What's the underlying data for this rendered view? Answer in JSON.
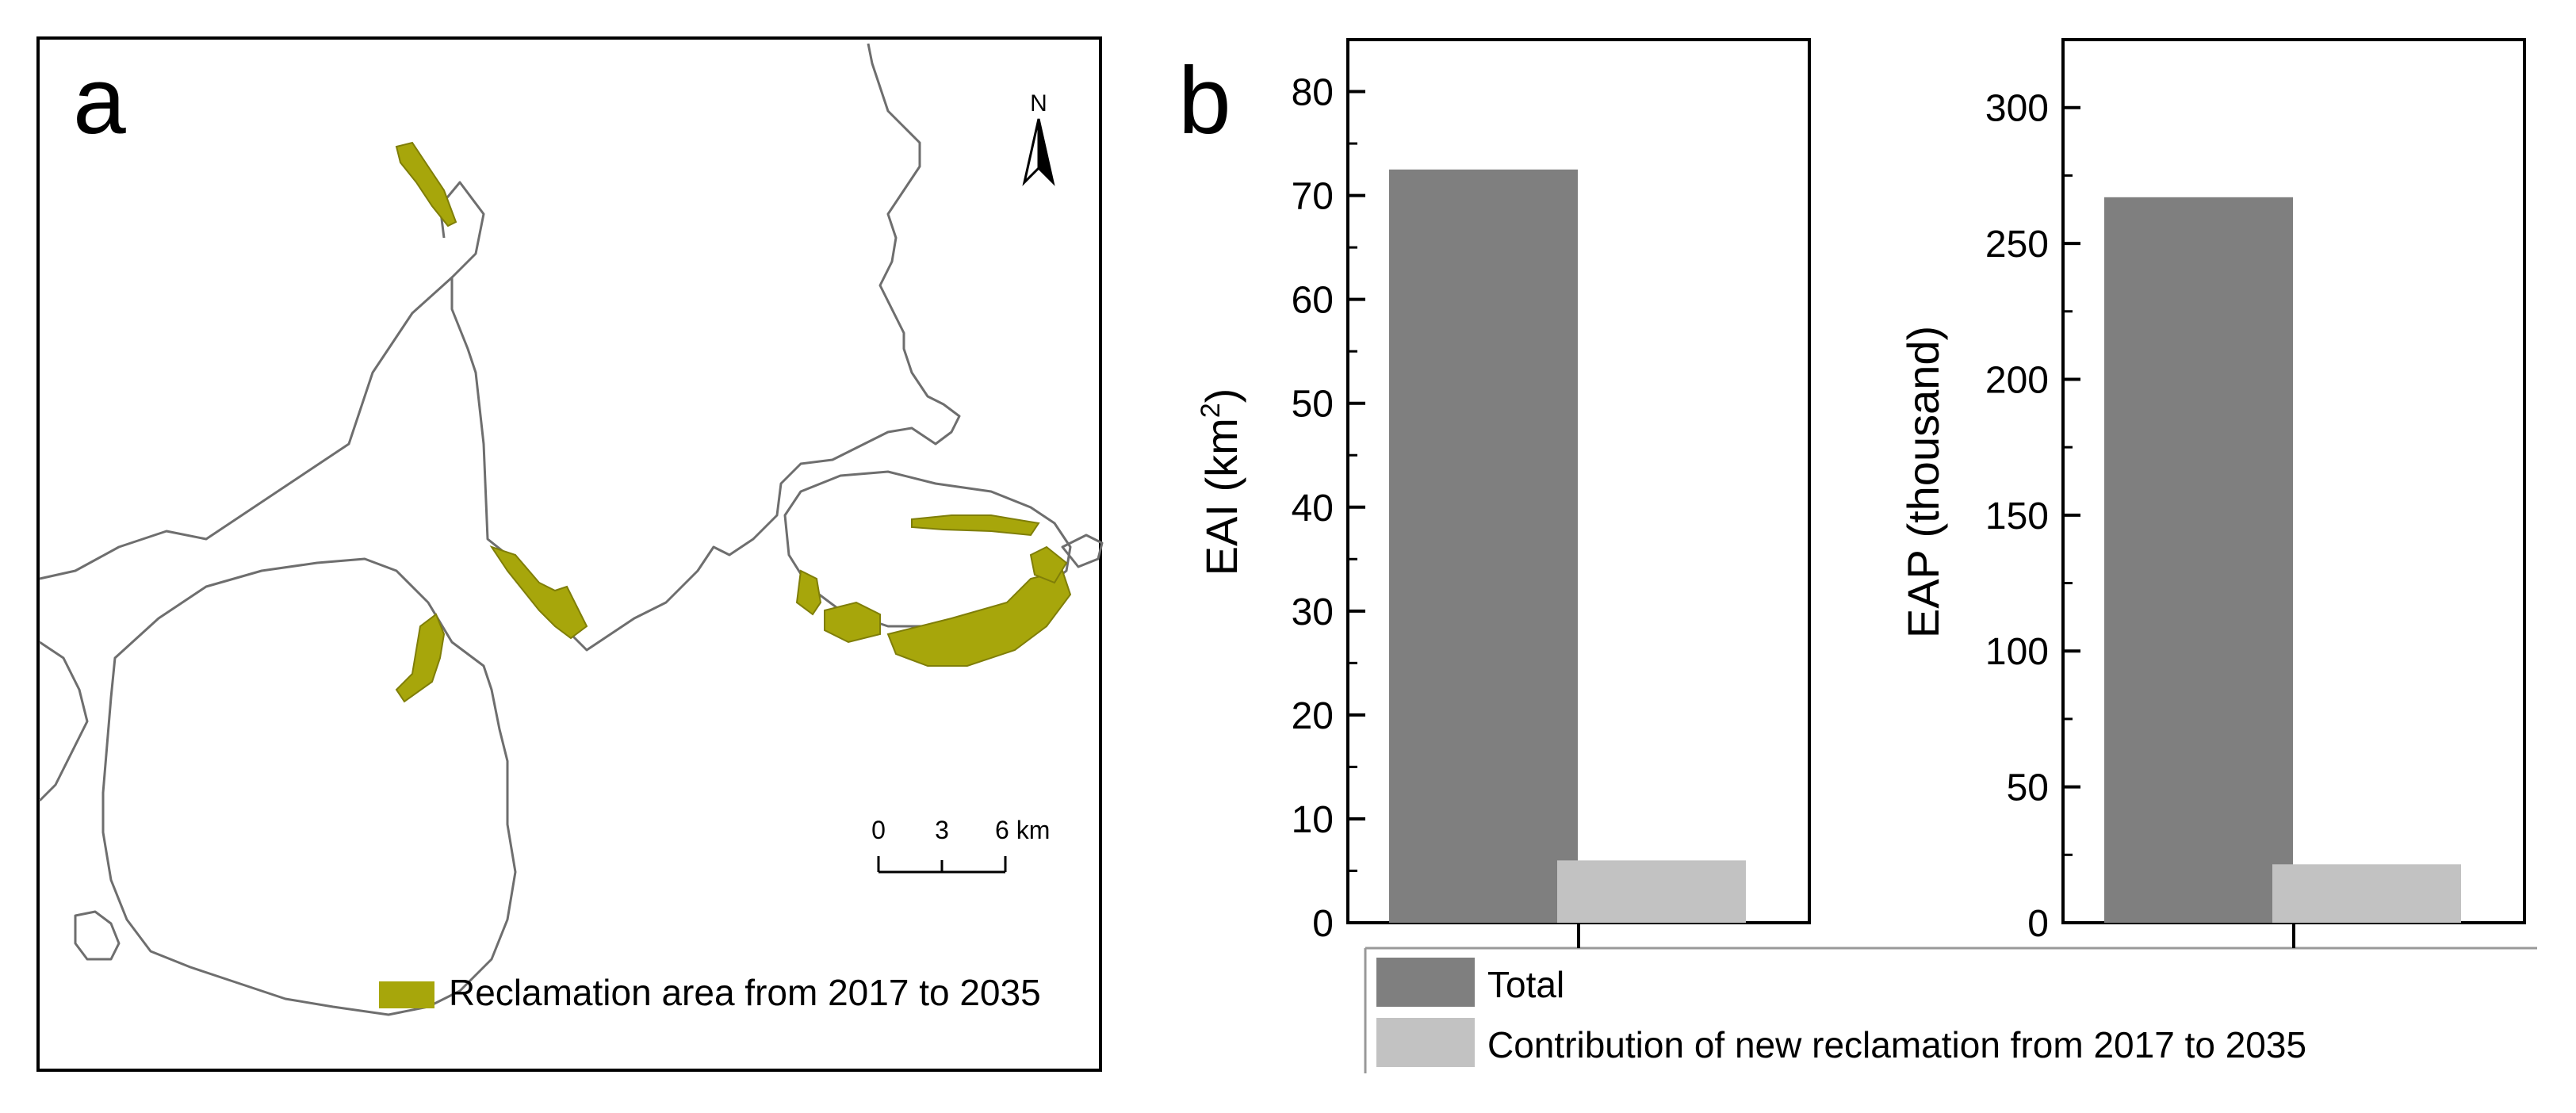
{
  "panel_a": {
    "label": "a",
    "north_label": "N",
    "scale_ticks": [
      "0",
      "3",
      "6 km"
    ],
    "legend_label": "Reclamation area from 2017 to 2035",
    "colors": {
      "reclamation": "#a7a60b",
      "coast": "#6e6e6e"
    },
    "icons": [
      "north-arrow-icon",
      "scale-bar-icon"
    ]
  },
  "panel_b": {
    "label": "b",
    "legend": [
      {
        "label": "Total",
        "color": "#7f7f7f"
      },
      {
        "label": "Contribution of new reclamation from 2017 to 2035",
        "color": "#c2c2c2"
      }
    ]
  },
  "chart_data": [
    {
      "type": "bar",
      "categories": [
        "Total",
        "Contribution of new reclamation from 2017 to 2035"
      ],
      "values": [
        72.5,
        6
      ],
      "ylabel": "EAI (km2)",
      "ylabel_main": "EAI (km",
      "ylabel_sup": "2",
      "ylabel_end": ")",
      "ylim": [
        0,
        85
      ],
      "yticks": [
        0,
        10,
        20,
        30,
        40,
        50,
        60,
        70,
        80
      ],
      "colors": [
        "#7f7f7f",
        "#c2c2c2"
      ],
      "grid": false
    },
    {
      "type": "bar",
      "categories": [
        "Total",
        "Contribution of new reclamation from 2017 to 2035"
      ],
      "values": [
        267,
        21.5
      ],
      "ylabel": "EAP (thousand)",
      "ylim": [
        0,
        325
      ],
      "yticks": [
        0,
        50,
        100,
        150,
        200,
        250,
        300
      ],
      "colors": [
        "#7f7f7f",
        "#c2c2c2"
      ],
      "grid": false
    }
  ]
}
